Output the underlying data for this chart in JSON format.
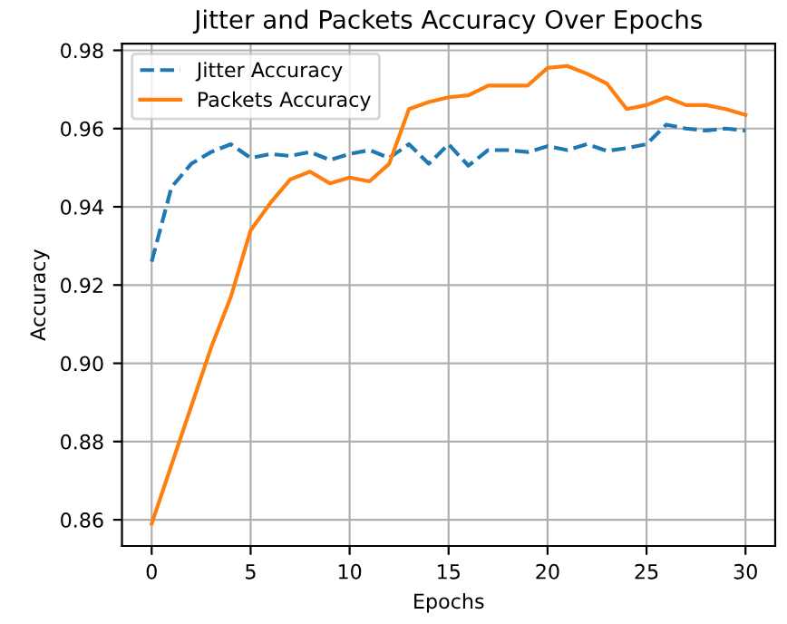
{
  "chart_data": {
    "type": "line",
    "title": "Jitter and Packets Accuracy Over Epochs",
    "xlabel": "Epochs",
    "ylabel": "Accuracy",
    "x": [
      0,
      1,
      2,
      3,
      4,
      5,
      6,
      7,
      8,
      9,
      10,
      11,
      12,
      13,
      14,
      15,
      16,
      17,
      18,
      19,
      20,
      21,
      22,
      23,
      24,
      25,
      26,
      27,
      28,
      29,
      30
    ],
    "series": [
      {
        "name": "Jitter Accuracy",
        "color": "#1f77b4",
        "line_style": "dashed",
        "values": [
          0.926,
          0.945,
          0.951,
          0.954,
          0.956,
          0.9525,
          0.9535,
          0.953,
          0.954,
          0.952,
          0.9535,
          0.9545,
          0.9525,
          0.956,
          0.951,
          0.956,
          0.9505,
          0.9545,
          0.9545,
          0.954,
          0.9555,
          0.9545,
          0.956,
          0.9543,
          0.955,
          0.956,
          0.961,
          0.96,
          0.9595,
          0.96,
          0.9595
        ]
      },
      {
        "name": "Packets Accuracy",
        "color": "#ff7f0e",
        "line_style": "solid",
        "values": [
          0.859,
          0.874,
          0.889,
          0.904,
          0.917,
          0.934,
          0.941,
          0.947,
          0.949,
          0.946,
          0.9475,
          0.9465,
          0.951,
          0.965,
          0.9668,
          0.968,
          0.9685,
          0.971,
          0.971,
          0.971,
          0.9755,
          0.976,
          0.974,
          0.9715,
          0.965,
          0.966,
          0.968,
          0.966,
          0.966,
          0.965,
          0.9635
        ]
      }
    ],
    "xlim": [
      -1.5,
      31.5
    ],
    "xticks": [
      0,
      5,
      10,
      15,
      20,
      25,
      30
    ],
    "ylim": [
      0.8533,
      0.9817
    ],
    "yticks": [
      {
        "value": 0.86,
        "label": "0.86"
      },
      {
        "value": 0.88,
        "label": "0.88"
      },
      {
        "value": 0.9,
        "label": "0.90"
      },
      {
        "value": 0.92,
        "label": "0.92"
      },
      {
        "value": 0.94,
        "label": "0.94"
      },
      {
        "value": 0.96,
        "label": "0.96"
      },
      {
        "value": 0.98,
        "label": "0.98"
      }
    ],
    "grid": true,
    "legend": "top left"
  }
}
